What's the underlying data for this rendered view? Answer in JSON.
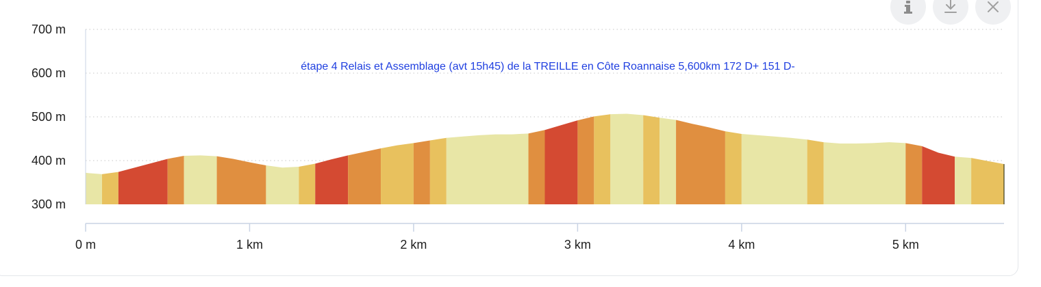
{
  "toolbar": {
    "info_icon": "info-icon",
    "download_icon": "download-icon",
    "close_icon": "close-icon"
  },
  "chart_data": {
    "type": "area",
    "title": "étape 4 Relais et Assemblage (avt 15h45) de la TREILLE en Côte Roannaise 5,600km 172 D+  151 D-",
    "xlabel": "",
    "ylabel": "",
    "xlim": [
      0,
      5.6
    ],
    "ylim": [
      300,
      700
    ],
    "x_ticks": [
      {
        "value": 0,
        "label": "0 m"
      },
      {
        "value": 1,
        "label": "1 km"
      },
      {
        "value": 2,
        "label": "2 km"
      },
      {
        "value": 3,
        "label": "3 km"
      },
      {
        "value": 4,
        "label": "4 km"
      },
      {
        "value": 5,
        "label": "5 km"
      }
    ],
    "y_ticks": [
      {
        "value": 300,
        "label": "300 m"
      },
      {
        "value": 400,
        "label": "400 m"
      },
      {
        "value": 500,
        "label": "500 m"
      },
      {
        "value": 600,
        "label": "600 m"
      },
      {
        "value": 700,
        "label": "700 m"
      }
    ],
    "grid": true,
    "profile": [
      {
        "x": 0,
        "y": 372
      },
      {
        "x": 0.1,
        "y": 369
      },
      {
        "x": 0.2,
        "y": 374
      },
      {
        "x": 0.3,
        "y": 384
      },
      {
        "x": 0.4,
        "y": 394
      },
      {
        "x": 0.5,
        "y": 404
      },
      {
        "x": 0.6,
        "y": 411
      },
      {
        "x": 0.7,
        "y": 412
      },
      {
        "x": 0.8,
        "y": 410
      },
      {
        "x": 0.9,
        "y": 404
      },
      {
        "x": 1.0,
        "y": 396
      },
      {
        "x": 1.1,
        "y": 389
      },
      {
        "x": 1.2,
        "y": 384
      },
      {
        "x": 1.3,
        "y": 386
      },
      {
        "x": 1.4,
        "y": 393
      },
      {
        "x": 1.5,
        "y": 403
      },
      {
        "x": 1.6,
        "y": 412
      },
      {
        "x": 1.7,
        "y": 420
      },
      {
        "x": 1.8,
        "y": 428
      },
      {
        "x": 1.9,
        "y": 435
      },
      {
        "x": 2.0,
        "y": 440
      },
      {
        "x": 2.1,
        "y": 446
      },
      {
        "x": 2.2,
        "y": 452
      },
      {
        "x": 2.3,
        "y": 455
      },
      {
        "x": 2.4,
        "y": 458
      },
      {
        "x": 2.5,
        "y": 460
      },
      {
        "x": 2.6,
        "y": 460
      },
      {
        "x": 2.7,
        "y": 462
      },
      {
        "x": 2.8,
        "y": 470
      },
      {
        "x": 2.9,
        "y": 481
      },
      {
        "x": 3.0,
        "y": 492
      },
      {
        "x": 3.1,
        "y": 501
      },
      {
        "x": 3.2,
        "y": 506
      },
      {
        "x": 3.3,
        "y": 507
      },
      {
        "x": 3.4,
        "y": 504
      },
      {
        "x": 3.5,
        "y": 498
      },
      {
        "x": 3.6,
        "y": 493
      },
      {
        "x": 3.7,
        "y": 484
      },
      {
        "x": 3.8,
        "y": 476
      },
      {
        "x": 3.9,
        "y": 467
      },
      {
        "x": 4.0,
        "y": 461
      },
      {
        "x": 4.1,
        "y": 458
      },
      {
        "x": 4.2,
        "y": 455
      },
      {
        "x": 4.3,
        "y": 452
      },
      {
        "x": 4.4,
        "y": 448
      },
      {
        "x": 4.5,
        "y": 442
      },
      {
        "x": 4.6,
        "y": 439
      },
      {
        "x": 4.7,
        "y": 439
      },
      {
        "x": 4.8,
        "y": 440
      },
      {
        "x": 4.9,
        "y": 442
      },
      {
        "x": 5.0,
        "y": 440
      },
      {
        "x": 5.1,
        "y": 433
      },
      {
        "x": 5.2,
        "y": 418
      },
      {
        "x": 5.3,
        "y": 409
      },
      {
        "x": 5.4,
        "y": 406
      },
      {
        "x": 5.5,
        "y": 399
      },
      {
        "x": 5.6,
        "y": 392
      }
    ],
    "slope_colors": {
      "flat": "#e8e6a6",
      "gentle": "#e8c15e",
      "moderate": "#e08f40",
      "steep": "#d44a32"
    },
    "segments": [
      {
        "from": 0.0,
        "to": 0.1,
        "color": "#e8e6a6"
      },
      {
        "from": 0.1,
        "to": 0.2,
        "color": "#e8c15e"
      },
      {
        "from": 0.2,
        "to": 0.5,
        "color": "#d44a32"
      },
      {
        "from": 0.5,
        "to": 0.6,
        "color": "#e08f40"
      },
      {
        "from": 0.6,
        "to": 0.8,
        "color": "#e8e6a6"
      },
      {
        "from": 0.8,
        "to": 1.1,
        "color": "#e08f40"
      },
      {
        "from": 1.1,
        "to": 1.3,
        "color": "#e8e6a6"
      },
      {
        "from": 1.3,
        "to": 1.4,
        "color": "#e8c15e"
      },
      {
        "from": 1.4,
        "to": 1.6,
        "color": "#d44a32"
      },
      {
        "from": 1.6,
        "to": 1.8,
        "color": "#e08f40"
      },
      {
        "from": 1.8,
        "to": 2.0,
        "color": "#e8c15e"
      },
      {
        "from": 2.0,
        "to": 2.1,
        "color": "#e08f40"
      },
      {
        "from": 2.1,
        "to": 2.2,
        "color": "#e8c15e"
      },
      {
        "from": 2.2,
        "to": 2.7,
        "color": "#e8e6a6"
      },
      {
        "from": 2.7,
        "to": 2.8,
        "color": "#e08f40"
      },
      {
        "from": 2.8,
        "to": 3.0,
        "color": "#d44a32"
      },
      {
        "from": 3.0,
        "to": 3.1,
        "color": "#e08f40"
      },
      {
        "from": 3.1,
        "to": 3.2,
        "color": "#e8c15e"
      },
      {
        "from": 3.2,
        "to": 3.4,
        "color": "#e8e6a6"
      },
      {
        "from": 3.4,
        "to": 3.5,
        "color": "#e8c15e"
      },
      {
        "from": 3.5,
        "to": 3.6,
        "color": "#e8e6a6"
      },
      {
        "from": 3.6,
        "to": 3.9,
        "color": "#e08f40"
      },
      {
        "from": 3.9,
        "to": 4.0,
        "color": "#e8c15e"
      },
      {
        "from": 4.0,
        "to": 4.4,
        "color": "#e8e6a6"
      },
      {
        "from": 4.4,
        "to": 4.5,
        "color": "#e8c15e"
      },
      {
        "from": 4.5,
        "to": 5.0,
        "color": "#e8e6a6"
      },
      {
        "from": 5.0,
        "to": 5.1,
        "color": "#e08f40"
      },
      {
        "from": 5.1,
        "to": 5.3,
        "color": "#d44a32"
      },
      {
        "from": 5.3,
        "to": 5.4,
        "color": "#e8e6a6"
      },
      {
        "from": 5.4,
        "to": 5.6,
        "color": "#e8c15e"
      }
    ],
    "colors": {
      "axis": "#c9d3e4",
      "grid": "#c6c6c6",
      "title": "#1f3fe0",
      "end_line": "#3a3a1a"
    }
  }
}
